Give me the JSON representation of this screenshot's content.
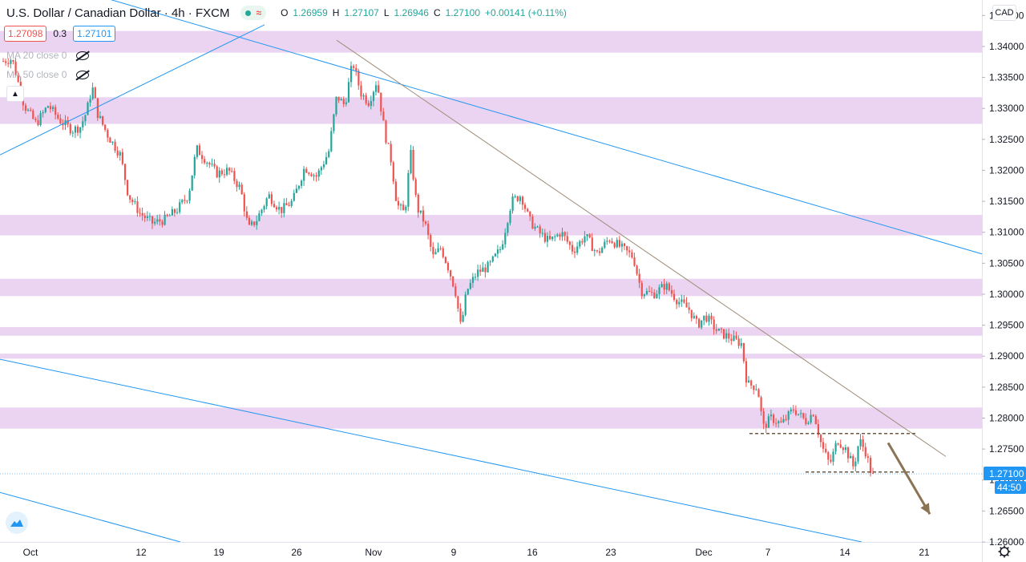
{
  "header": {
    "symbol": "U.S. Dollar / Canadian Dollar",
    "interval": "4h",
    "source": "FXCM",
    "ohlc": [
      {
        "k": "O",
        "v": "1.26959"
      },
      {
        "k": "H",
        "v": "1.27107"
      },
      {
        "k": "L",
        "v": "1.26946"
      },
      {
        "k": "C",
        "v": "1.27100"
      }
    ],
    "change": "+0.00141 (+0.11%)"
  },
  "quote": {
    "sell": "1.27098",
    "spread": "0.3",
    "buy": "1.27101"
  },
  "indicators": [
    {
      "label": "MA 20 close 0"
    },
    {
      "label": "MA 50 close 0"
    }
  ],
  "axis": {
    "currency": "CAD",
    "last_price": "1.27100",
    "countdown": "44:50"
  },
  "colors": {
    "up": "#26a69a",
    "down": "#ef5350",
    "zone": "#e6cdee",
    "trendline": "#2196f3",
    "resistance": "#a08d7a",
    "arrow": "#8b7355",
    "price_label": "#2196f3"
  },
  "chart_data": {
    "type": "candlestick",
    "ylim": [
      1.26,
      1.3475
    ],
    "y_ticks": [
      "1.26000",
      "1.26500",
      "1.27000",
      "1.27500",
      "1.28000",
      "1.28500",
      "1.29000",
      "1.29500",
      "1.30000",
      "1.30500",
      "1.31000",
      "1.31500",
      "1.32000",
      "1.32500",
      "1.33000",
      "1.33500",
      "1.34000",
      "1.34500"
    ],
    "x_labels": [
      "Oct",
      "12",
      "19",
      "26",
      "Nov",
      "9",
      "16",
      "23",
      "Dec",
      "7",
      "14",
      "21"
    ],
    "zones": [
      [
        1.339,
        1.3425
      ],
      [
        1.3275,
        1.3318
      ],
      [
        1.3095,
        1.3128
      ],
      [
        1.2997,
        1.3025
      ],
      [
        1.2933,
        1.2947
      ],
      [
        1.2896,
        1.2904
      ],
      [
        1.2783,
        1.2817
      ]
    ],
    "path_points": [
      [
        0,
        1.3375
      ],
      [
        15,
        1.338
      ],
      [
        30,
        1.3305
      ],
      [
        45,
        1.3275
      ],
      [
        60,
        1.3305
      ],
      [
        75,
        1.328
      ],
      [
        90,
        1.3265
      ],
      [
        100,
        1.327
      ],
      [
        108,
        1.3295
      ],
      [
        115,
        1.3335
      ],
      [
        122,
        1.329
      ],
      [
        135,
        1.3255
      ],
      [
        150,
        1.3225
      ],
      [
        160,
        1.316
      ],
      [
        175,
        1.313
      ],
      [
        190,
        1.3115
      ],
      [
        205,
        1.312
      ],
      [
        220,
        1.3135
      ],
      [
        235,
        1.316
      ],
      [
        245,
        1.3235
      ],
      [
        258,
        1.3215
      ],
      [
        270,
        1.3195
      ],
      [
        285,
        1.32
      ],
      [
        300,
        1.317
      ],
      [
        310,
        1.3105
      ],
      [
        320,
        1.312
      ],
      [
        335,
        1.316
      ],
      [
        350,
        1.3135
      ],
      [
        365,
        1.315
      ],
      [
        380,
        1.3205
      ],
      [
        395,
        1.319
      ],
      [
        410,
        1.323
      ],
      [
        420,
        1.332
      ],
      [
        430,
        1.3305
      ],
      [
        440,
        1.3375
      ],
      [
        450,
        1.3325
      ],
      [
        460,
        1.331
      ],
      [
        470,
        1.3345
      ],
      [
        480,
        1.326
      ],
      [
        488,
        1.3215
      ],
      [
        495,
        1.3145
      ],
      [
        505,
        1.313
      ],
      [
        512,
        1.323
      ],
      [
        520,
        1.314
      ],
      [
        530,
        1.3115
      ],
      [
        540,
        1.306
      ],
      [
        550,
        1.3075
      ],
      [
        560,
        1.304
      ],
      [
        568,
        1.3005
      ],
      [
        575,
        1.2945
      ],
      [
        582,
        1.3005
      ],
      [
        595,
        1.3035
      ],
      [
        610,
        1.3045
      ],
      [
        625,
        1.3075
      ],
      [
        638,
        1.315
      ],
      [
        650,
        1.316
      ],
      [
        660,
        1.312
      ],
      [
        672,
        1.31
      ],
      [
        685,
        1.3085
      ],
      [
        700,
        1.31
      ],
      [
        715,
        1.307
      ],
      [
        730,
        1.3095
      ],
      [
        745,
        1.3065
      ],
      [
        760,
        1.309
      ],
      [
        775,
        1.3075
      ],
      [
        790,
        1.306
      ],
      [
        800,
        1.3005
      ],
      [
        815,
        1.3
      ],
      [
        830,
        1.3015
      ],
      [
        845,
        1.299
      ],
      [
        860,
        1.2975
      ],
      [
        870,
        1.295
      ],
      [
        880,
        1.2965
      ],
      [
        895,
        1.294
      ],
      [
        910,
        1.293
      ],
      [
        925,
        1.292
      ],
      [
        932,
        1.2855
      ],
      [
        945,
        1.285
      ],
      [
        952,
        1.2785
      ],
      [
        962,
        1.28
      ],
      [
        975,
        1.279
      ],
      [
        990,
        1.2815
      ],
      [
        1005,
        1.2795
      ],
      [
        1015,
        1.281
      ],
      [
        1025,
        1.2755
      ],
      [
        1035,
        1.2725
      ],
      [
        1045,
        1.2765
      ],
      [
        1055,
        1.275
      ],
      [
        1065,
        1.272
      ],
      [
        1072,
        1.2765
      ],
      [
        1080,
        1.2745
      ],
      [
        1088,
        1.2705
      ],
      [
        1092,
        1.271
      ]
    ],
    "trendlines": [
      {
        "from": [
          100,
          1.349
        ],
        "to": [
          1225,
          1.3065
        ]
      },
      {
        "from": [
          0,
          1.3225
        ],
        "to": [
          330,
          1.3435
        ]
      },
      {
        "from": [
          0,
          1.2895
        ],
        "to": [
          1075,
          1.26
        ]
      },
      {
        "from": [
          0,
          1.268
        ],
        "to": [
          225,
          1.26
        ]
      },
      {
        "from": [
          420,
          1.341
        ],
        "to": [
          1180,
          1.2738
        ],
        "kind": "resistance"
      }
    ],
    "dashed_levels": [
      {
        "from": 935,
        "to": 1145,
        "y": 1.2775
      },
      {
        "from": 1005,
        "to": 1140,
        "y": 1.2713
      }
    ],
    "arrow": {
      "from": [
        1108,
        1.276
      ],
      "to": [
        1160,
        1.2645
      ]
    },
    "last_price": 1.271
  }
}
